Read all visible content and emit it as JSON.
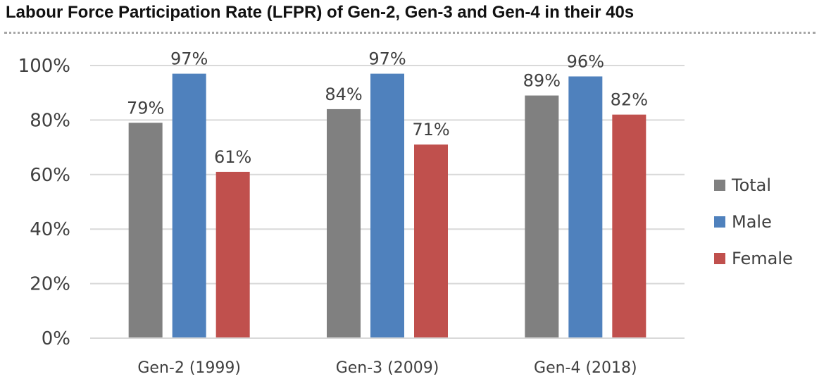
{
  "title": "Labour Force Participation Rate (LFPR) of Gen-2, Gen-3 and Gen-4 in their 40s",
  "chart_data": {
    "type": "bar",
    "title": "Labour Force Participation Rate (LFPR) of Gen-2, Gen-3 and Gen-4 in their 40s",
    "xlabel": "",
    "ylabel": "",
    "categories": [
      "Gen-2 (1999)",
      "Gen-3 (2009)",
      "Gen-4 (2018)"
    ],
    "series": [
      {
        "name": "Total",
        "color": "#808080",
        "values": [
          79,
          84,
          89
        ]
      },
      {
        "name": "Male",
        "color": "#4f81bd",
        "values": [
          97,
          97,
          96
        ]
      },
      {
        "name": "Female",
        "color": "#c0504d",
        "values": [
          61,
          71,
          82
        ]
      }
    ],
    "ylim": [
      0,
      100
    ],
    "yticks": [
      0,
      20,
      40,
      60,
      80,
      100
    ],
    "ytick_labels": [
      "0%",
      "20%",
      "40%",
      "60%",
      "80%",
      "100%"
    ],
    "data_labels": [
      [
        "79%",
        "84%",
        "89%"
      ],
      [
        "97%",
        "97%",
        "96%"
      ],
      [
        "61%",
        "71%",
        "82%"
      ]
    ],
    "grid": true,
    "legend_position": "right"
  }
}
